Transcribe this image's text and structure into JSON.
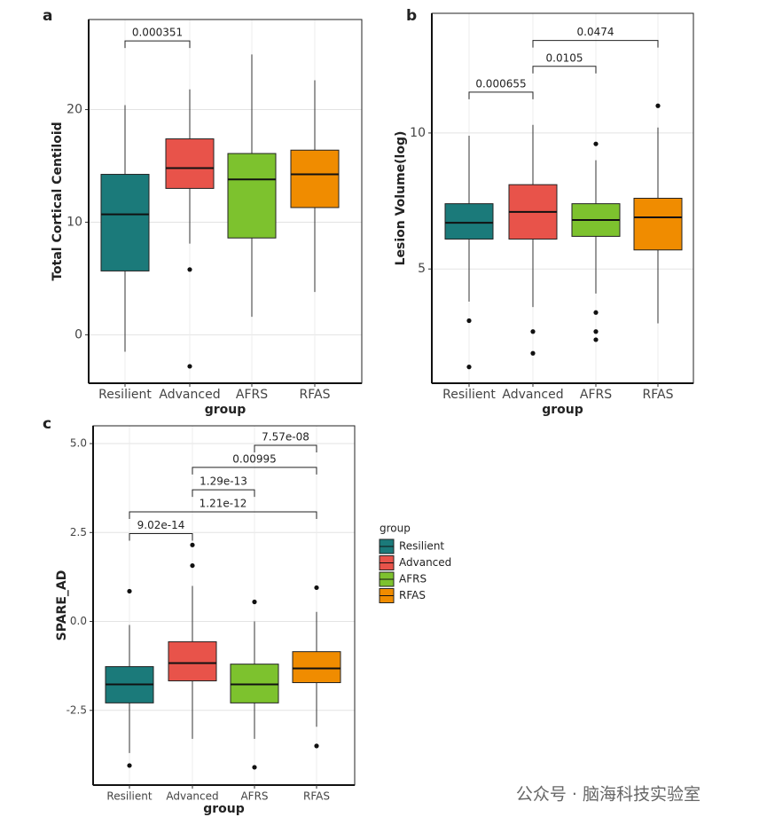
{
  "chart_data": [
    {
      "type": "box",
      "panel": "a",
      "ylabel": "Total Cortical Centiloid",
      "xlabel": "group",
      "categories": [
        "Resilient",
        "Advanced",
        "AFRS",
        "RFAS"
      ],
      "colors": [
        "#1b7a7a",
        "#e8534a",
        "#7dc22e",
        "#f08c00"
      ],
      "boxes": [
        {
          "whislo": -1.5,
          "q1": 5.67,
          "med": 10.7,
          "q3": 14.25,
          "whishi": 20.4,
          "outliers": []
        },
        {
          "whislo": 8.1,
          "q1": 13.0,
          "med": 14.8,
          "q3": 17.4,
          "whishi": 21.8,
          "outliers": [
            5.8,
            -2.8
          ]
        },
        {
          "whislo": 1.6,
          "q1": 8.6,
          "med": 13.8,
          "q3": 16.1,
          "whishi": 24.9,
          "outliers": []
        },
        {
          "whislo": 3.8,
          "q1": 11.3,
          "med": 14.25,
          "q3": 16.4,
          "whishi": 22.6,
          "outliers": []
        }
      ],
      "ylim": [
        -4.3,
        28
      ],
      "yticks": [
        0,
        10,
        20
      ],
      "grid": true,
      "brackets": [
        {
          "groups": [
            "Resilient",
            "Advanced"
          ],
          "y": 26.1,
          "label": "0.000351"
        }
      ]
    },
    {
      "type": "box",
      "panel": "b",
      "ylabel": "Lesion Volume(log)",
      "xlabel": "group",
      "categories": [
        "Resilient",
        "Advanced",
        "AFRS",
        "RFAS"
      ],
      "colors": [
        "#1b7a7a",
        "#e8534a",
        "#7dc22e",
        "#f08c00"
      ],
      "boxes": [
        {
          "whislo": 3.8,
          "q1": 6.1,
          "med": 6.7,
          "q3": 7.4,
          "whishi": 9.9,
          "outliers": [
            3.1,
            1.4
          ]
        },
        {
          "whislo": 3.6,
          "q1": 6.1,
          "med": 7.1,
          "q3": 8.1,
          "whishi": 10.3,
          "outliers": [
            2.7,
            1.9
          ]
        },
        {
          "whislo": 4.1,
          "q1": 6.2,
          "med": 6.8,
          "q3": 7.4,
          "whishi": 9.0,
          "outliers": [
            9.6,
            3.4,
            2.7,
            2.4
          ]
        },
        {
          "whislo": 3.0,
          "q1": 5.7,
          "med": 6.9,
          "q3": 7.6,
          "whishi": 10.2,
          "outliers": [
            11.0
          ]
        }
      ],
      "ylim": [
        0.8,
        14.4
      ],
      "yticks": [
        5,
        10
      ],
      "grid": true,
      "brackets": [
        {
          "groups": [
            "Resilient",
            "Advanced"
          ],
          "y": 11.5,
          "label": "0.000655"
        },
        {
          "groups": [
            "Advanced",
            "AFRS"
          ],
          "y": 12.45,
          "label": "0.0105"
        },
        {
          "groups": [
            "Advanced",
            "RFAS"
          ],
          "y": 13.4,
          "label": "0.0474"
        }
      ]
    },
    {
      "type": "box",
      "panel": "c",
      "ylabel": "SPARE_AD",
      "xlabel": "group",
      "categories": [
        "Resilient",
        "Advanced",
        "AFRS",
        "RFAS"
      ],
      "colors": [
        "#1b7a7a",
        "#e8534a",
        "#7dc22e",
        "#f08c00"
      ],
      "boxes": [
        {
          "whislo": -3.7,
          "q1": -2.29,
          "med": -1.77,
          "q3": -1.27,
          "whishi": -0.1,
          "outliers": [
            0.85,
            -4.05
          ]
        },
        {
          "whislo": -3.3,
          "q1": -1.67,
          "med": -1.17,
          "q3": -0.57,
          "whishi": 1.0,
          "outliers": [
            2.15,
            1.57
          ]
        },
        {
          "whislo": -3.3,
          "q1": -2.29,
          "med": -1.77,
          "q3": -1.2,
          "whishi": 0.0,
          "outliers": [
            0.55,
            -4.1
          ]
        },
        {
          "whislo": -2.96,
          "q1": -1.72,
          "med": -1.32,
          "q3": -0.85,
          "whishi": 0.27,
          "outliers": [
            0.95,
            -3.5
          ]
        }
      ],
      "ylim": [
        -4.6,
        5.5
      ],
      "yticks": [
        -2.5,
        {
          "value": 0,
          "label": "0.0"
        },
        2.5,
        {
          "value": 5,
          "label": "5.0"
        }
      ],
      "grid": true,
      "brackets": [
        {
          "groups": [
            "AFRS",
            "RFAS"
          ],
          "y": 4.95,
          "label": "7.57e-08"
        },
        {
          "groups": [
            "Advanced",
            "RFAS"
          ],
          "y": 4.33,
          "label": "0.00995"
        },
        {
          "groups": [
            "Advanced",
            "AFRS"
          ],
          "y": 3.7,
          "label": "1.29e-13"
        },
        {
          "groups": [
            "Resilient",
            "RFAS"
          ],
          "y": 3.08,
          "label": "1.21e-12"
        },
        {
          "groups": [
            "Resilient",
            "Advanced"
          ],
          "y": 2.47,
          "label": "9.02e-14"
        }
      ],
      "legend": {
        "title": "group",
        "position": "right"
      }
    }
  ],
  "watermark": "公众号 · 脑海科技实验室"
}
